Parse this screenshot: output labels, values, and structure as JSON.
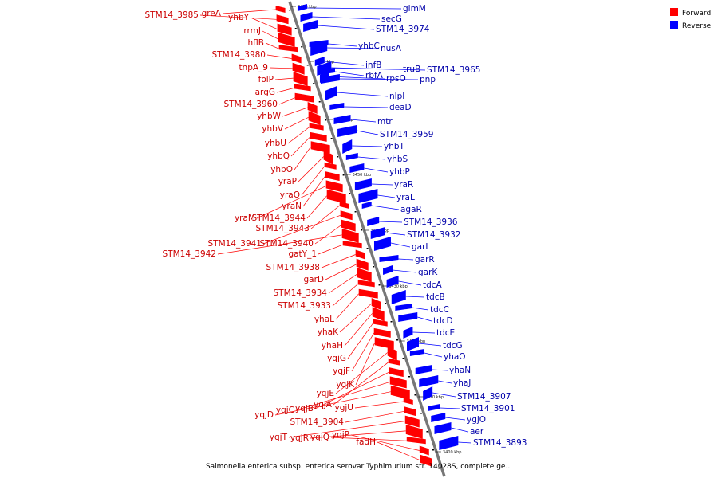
{
  "caption": "Salmonella enterica subsp. enterica serovar Typhimurium str. 14028S, complete ge...",
  "legend": {
    "forward_label": "Forward",
    "reverse_label": "Reverse",
    "forward_color": "#ff0000",
    "reverse_color": "#0000ff"
  },
  "colors": {
    "forward_label": "#cc0000",
    "reverse_label": "#0000aa",
    "forward_line": "#ff0000",
    "reverse_line": "#0000ff",
    "backbone": "#777777"
  },
  "ruler": [
    "3480 kbp",
    "3470 kbp",
    "3460 kbp",
    "3450 kbp",
    "3440 kbp",
    "3430 kbp",
    "3420 kbp",
    "3410 kbp",
    "3400 kbp"
  ],
  "reverse_genes": [
    "glmM",
    "secG",
    "STM14_3974",
    "nusA",
    "yhbC",
    "infB",
    "truB",
    "STM14_3965",
    "rbfA",
    "pnp",
    "rpsO",
    "nlpI",
    "deaD",
    "mtr",
    "STM14_3959",
    "yhbT",
    "yhbS",
    "yhbP",
    "yraR",
    "yraL",
    "agaR",
    "STM14_3936",
    "STM14_3932",
    "garL",
    "garR",
    "garK",
    "tdcA",
    "tdcB",
    "tdcC",
    "tdcD",
    "tdcE",
    "tdcG",
    "yhaO",
    "yhaN",
    "yhaJ",
    "STM14_3907",
    "STM14_3901",
    "ygjO",
    "aer",
    "STM14_3893"
  ],
  "forward_genes": [
    "greA",
    "STM14_3985",
    "yhbY",
    "rrmJ",
    "hflB",
    "STM14_3980",
    "tnpA_9",
    "folP",
    "argG",
    "STM14_3960",
    "yhbW",
    "yhbV",
    "yhbU",
    "yhbQ",
    "yhbO",
    "yraP",
    "yraO",
    "yraN",
    "yraM",
    "STM14_3944",
    "STM14_3943",
    "STM14_3941",
    "STM14_3940",
    "STM14_3942",
    "gatY_1",
    "STM14_3938",
    "garD",
    "STM14_3934",
    "STM14_3933",
    "yhaL",
    "yhaK",
    "yhaH",
    "yqjG",
    "yqjF",
    "yqjK",
    "yqjE",
    "yqjA",
    "yqjB",
    "yqjC",
    "yqjD",
    "ygjU",
    "STM14_3904",
    "yqjT",
    "yqjR",
    "yqjQ",
    "yqjP",
    "fadH"
  ]
}
